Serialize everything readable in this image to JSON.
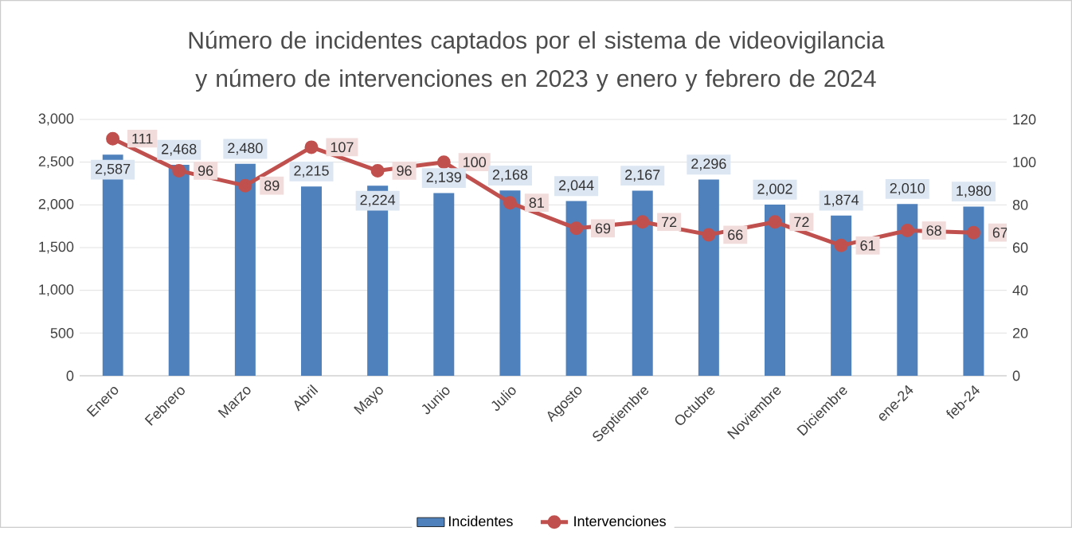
{
  "chart_data": {
    "type": "bar",
    "title": "Número de incidentes captados por el sistema de videovigilancia y número de intervenciones en 2023 y enero y febrero de 2024",
    "categories": [
      "Enero",
      "Febrero",
      "Marzo",
      "Abril",
      "Mayo",
      "Junio",
      "Julio",
      "Agosto",
      "Septiembre",
      "Octubre",
      "Noviembre",
      "Diciembre",
      "ene-24",
      "feb-24"
    ],
    "series": [
      {
        "name": "Incidentes",
        "color": "#4f81bd",
        "values": [
          2587,
          2468,
          2480,
          2215,
          2224,
          2139,
          2168,
          2044,
          2167,
          2296,
          2002,
          1874,
          2010,
          1980
        ],
        "value_labels": [
          "2,587",
          "2,468",
          "2,480",
          "2,215",
          "2,224",
          "2,139",
          "2,168",
          "2,044",
          "2,167",
          "2,296",
          "2,002",
          "1,874",
          "2,010",
          "1,980"
        ]
      },
      {
        "name": "Intervenciones",
        "type": "line",
        "axis": "y2",
        "color": "#c0504d",
        "marker": "circle",
        "values": [
          111,
          96,
          89,
          107,
          96,
          100,
          81,
          69,
          72,
          66,
          72,
          61,
          68,
          67
        ],
        "value_labels": [
          "111",
          "96",
          "89",
          "107",
          "96",
          "100",
          "81",
          "69",
          "72",
          "66",
          "72",
          "61",
          "68",
          "67"
        ]
      }
    ],
    "ylim": [
      0,
      3000
    ],
    "yticks": [
      0,
      {
        "value": 500,
        "label": "500"
      },
      {
        "value": 1000,
        "label": "1,000"
      },
      {
        "value": 1500,
        "label": "1,500"
      },
      {
        "value": 2000,
        "label": "2,000"
      },
      {
        "value": 2500,
        "label": "2,500"
      },
      {
        "value": 3000,
        "label": "3,000"
      }
    ],
    "y2lim": [
      0,
      120
    ],
    "y2ticks": [
      0,
      20,
      40,
      60,
      80,
      100,
      120
    ],
    "grid": "y",
    "legend": "bottom"
  }
}
